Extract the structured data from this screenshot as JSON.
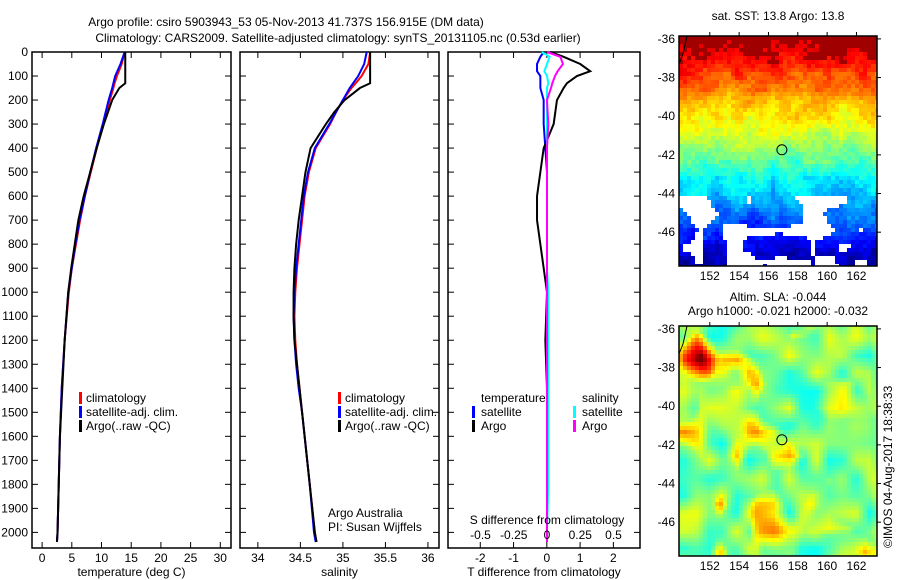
{
  "title_line1": "Argo profile: csiro 5903943_53 05-Nov-2013 41.737S 156.915E (DM data)",
  "title_line2": "Climatology: CARS2009. Satellite-adjusted climatology: synTS_20131105.nc (0.53d earlier)",
  "credit": "Argo Australia",
  "pi": "PI: Susan Wijffels",
  "copyright": "©IMOS 04-Aug-2017 18:38:33",
  "colors": {
    "climatology": "#ff0000",
    "satellite": "#0000ff",
    "argo": "#000000",
    "sal_satellite": "#00ffff",
    "sal_argo": "#ff00ff"
  },
  "chart_data": [
    {
      "type": "line",
      "xlabel": "temperature (deg C)",
      "ylabel": "",
      "xlim": [
        -1.7,
        31.8
      ],
      "ylim": [
        2065,
        0
      ],
      "xticks": [
        0,
        5,
        10,
        15,
        20,
        25,
        30
      ],
      "yticks": [
        0,
        100,
        200,
        300,
        400,
        500,
        600,
        700,
        800,
        900,
        1000,
        1100,
        1200,
        1300,
        1400,
        1500,
        1600,
        1700,
        1800,
        1900,
        2000
      ],
      "legend": [
        "climatology",
        "satellite-adj. clim.",
        "Argo(..raw -QC)"
      ],
      "depth": [
        0,
        50,
        100,
        130,
        150,
        200,
        300,
        400,
        500,
        600,
        700,
        800,
        900,
        1000,
        1200,
        1400,
        1600,
        1800,
        2000,
        2040
      ],
      "series": [
        {
          "name": "climatology",
          "values": [
            13.9,
            13.4,
            12.6,
            12.2,
            12.0,
            11.4,
            10.3,
            9.2,
            8.2,
            7.2,
            6.4,
            5.7,
            5.0,
            4.5,
            3.8,
            3.3,
            3.0,
            2.8,
            2.6,
            2.5
          ]
        },
        {
          "name": "satellite-adj. clim.",
          "values": [
            13.9,
            13.2,
            12.3,
            12.0,
            11.8,
            11.2,
            10.2,
            9.1,
            8.1,
            7.2,
            6.3,
            5.6,
            5.0,
            4.4,
            3.8,
            3.3,
            3.0,
            2.8,
            2.6,
            2.5
          ]
        },
        {
          "name": "Argo(..raw -QC)",
          "values": [
            14.0,
            14.0,
            14.0,
            14.0,
            13.0,
            11.8,
            10.4,
            9.2,
            8.1,
            7.0,
            6.1,
            5.5,
            4.9,
            4.4,
            3.8,
            3.4,
            3.0,
            2.8,
            2.6,
            2.5
          ]
        }
      ]
    },
    {
      "type": "line",
      "xlabel": "salinity",
      "xlim": [
        33.79,
        36.13
      ],
      "ylim": [
        2065,
        0
      ],
      "xticks": [
        34,
        34.5,
        35,
        35.5,
        36
      ],
      "legend": [
        "climatology",
        "satellite-adj. clim.",
        "Argo(..raw -QC)"
      ],
      "depth": [
        0,
        50,
        100,
        130,
        150,
        200,
        250,
        300,
        400,
        500,
        600,
        700,
        800,
        900,
        1000,
        1100,
        1200,
        1300,
        1400,
        1500,
        1600,
        1800,
        2000,
        2040
      ],
      "series": [
        {
          "name": "climatology",
          "values": [
            35.32,
            35.3,
            35.22,
            35.15,
            35.1,
            35.0,
            34.92,
            34.85,
            34.68,
            34.6,
            34.55,
            34.52,
            34.49,
            34.46,
            34.44,
            34.43,
            34.44,
            34.46,
            34.49,
            34.52,
            34.55,
            34.61,
            34.67,
            34.69
          ]
        },
        {
          "name": "satellite-adj. clim.",
          "values": [
            35.28,
            35.25,
            35.18,
            35.12,
            35.08,
            35.0,
            34.92,
            34.84,
            34.67,
            34.59,
            34.54,
            34.51,
            34.48,
            34.45,
            34.43,
            34.42,
            34.43,
            34.45,
            34.48,
            34.52,
            34.55,
            34.61,
            34.66,
            34.68
          ]
        },
        {
          "name": "Argo(..raw -QC)",
          "values": [
            35.32,
            35.32,
            35.32,
            35.32,
            35.2,
            35.02,
            34.9,
            34.8,
            34.62,
            34.56,
            34.52,
            34.48,
            34.45,
            34.43,
            34.42,
            34.42,
            34.43,
            34.46,
            34.49,
            34.52,
            34.55,
            34.61,
            34.67,
            34.69
          ]
        }
      ]
    },
    {
      "type": "line",
      "xlabel": "T difference from climatology",
      "xlabel2": "S difference from climatology",
      "xlim": [
        -2.97,
        2.8
      ],
      "ylim": [
        2065,
        0
      ],
      "xticks": [
        -2,
        -1,
        0,
        1,
        2
      ],
      "xticks2": [
        -0.5,
        -0.25,
        0,
        0.25,
        0.5
      ],
      "xtick2_labels": [
        "-0.5",
        "-0.25",
        "0",
        "0.25",
        "0.5"
      ],
      "legend_temperature": {
        "title": "temperature",
        "items": [
          "satellite",
          "Argo"
        ]
      },
      "legend_salinity": {
        "title": "salinity",
        "items": [
          "satellite",
          "Argo"
        ]
      },
      "depth": [
        0,
        20,
        50,
        80,
        100,
        130,
        150,
        200,
        300,
        400,
        500,
        600,
        700,
        800,
        900,
        1000,
        1200,
        1400,
        1600,
        1800,
        2000,
        2040
      ],
      "series": [
        {
          "name": "T satellite",
          "values": [
            -0.1,
            -0.2,
            -0.3,
            -0.3,
            -0.2,
            -0.2,
            -0.2,
            -0.1,
            -0.1,
            -0.05,
            0,
            0,
            0,
            0,
            0,
            0,
            0,
            0,
            0,
            0,
            0,
            0
          ]
        },
        {
          "name": "T Argo",
          "values": [
            0.1,
            0.5,
            1.0,
            1.3,
            0.9,
            0.6,
            0.5,
            0.3,
            0.2,
            -0.1,
            -0.2,
            -0.3,
            -0.3,
            -0.2,
            -0.1,
            0,
            -0.05,
            0,
            0,
            0,
            0,
            0
          ]
        },
        {
          "name": "S satellite",
          "values": [
            -0.04,
            0.02,
            0.0,
            -0.02,
            0.0,
            0.01,
            0.0,
            0.0,
            0.0,
            0.0,
            0.0,
            0.0,
            0.0,
            0.0,
            0.0,
            0.01,
            0.01,
            0.01,
            0.01,
            0.01,
            0.0,
            0.0
          ]
        },
        {
          "name": "S Argo",
          "values": [
            0.0,
            0.1,
            0.12,
            0.08,
            0.06,
            0.04,
            0.03,
            0.0,
            0.01,
            0.0,
            0.0,
            0.0,
            0.0,
            0.0,
            0.0,
            0.0,
            0.0,
            0.0,
            0.0,
            0.0,
            0.0,
            0.0
          ]
        }
      ]
    },
    {
      "type": "heatmap",
      "title": "sat. SST: 13.8 Argo: 13.8",
      "xlim": [
        149.9,
        163.4
      ],
      "ylim": [
        -47.75,
        -35.85
      ],
      "xticks": [
        152,
        154,
        156,
        158,
        160,
        162
      ],
      "yticks": [
        -36,
        -38,
        -40,
        -42,
        -44,
        -46
      ],
      "marker": {
        "lon": 156.915,
        "lat": -41.737
      }
    },
    {
      "type": "heatmap",
      "title": "Altim. SLA: -0.044",
      "subtitle": "Argo h1000: -0.021 h2000: -0.032",
      "xlim": [
        149.9,
        163.4
      ],
      "ylim": [
        -47.75,
        -35.85
      ],
      "xticks": [
        152,
        154,
        156,
        158,
        160,
        162
      ],
      "yticks": [
        -36,
        -38,
        -40,
        -42,
        -44,
        -46
      ],
      "marker": {
        "lon": 156.915,
        "lat": -41.737
      }
    }
  ]
}
